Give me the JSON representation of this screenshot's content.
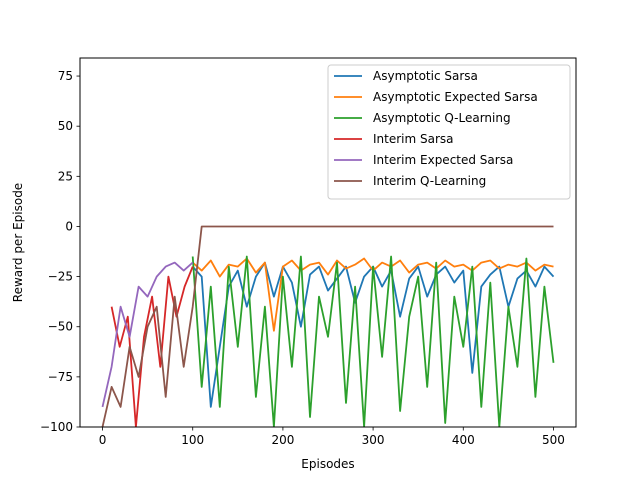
{
  "chart_data": {
    "type": "line",
    "title": "",
    "xlabel": "Episodes",
    "ylabel": "Reward per Episode",
    "xlim": [
      -25,
      525
    ],
    "ylim": [
      -100,
      84
    ],
    "xticks": [
      0,
      100,
      200,
      300,
      400,
      500
    ],
    "yticks": [
      -100,
      -75,
      -50,
      -25,
      0,
      25,
      50,
      75
    ],
    "legend_position": "top-right",
    "grid": false,
    "series": [
      {
        "name": "Asymptotic Sarsa",
        "color": "#1f77b4",
        "x_range": [
          100,
          500
        ],
        "y_sampled": [
          -20,
          -25,
          -90,
          -60,
          -30,
          -22,
          -40,
          -25,
          -18,
          -35,
          -20,
          -28,
          -50,
          -24,
          -20,
          -32,
          -26,
          -20,
          -38,
          -25,
          -20,
          -30,
          -22,
          -45,
          -26,
          -20,
          -35,
          -24,
          -20,
          -28,
          -22,
          -73,
          -30,
          -24,
          -20,
          -40,
          -26,
          -22,
          -30,
          -20,
          -25
        ]
      },
      {
        "name": "Asymptotic Expected Sarsa",
        "color": "#ff7f0e",
        "x_range": [
          100,
          500
        ],
        "y_sampled": [
          -18,
          -22,
          -17,
          -25,
          -19,
          -20,
          -16,
          -23,
          -18,
          -52,
          -20,
          -17,
          -22,
          -19,
          -18,
          -24,
          -17,
          -21,
          -19,
          -16,
          -22,
          -18,
          -20,
          -17,
          -23,
          -19,
          -18,
          -21,
          -17,
          -20,
          -19,
          -22,
          -18,
          -17,
          -21,
          -19,
          -20,
          -18,
          -22,
          -19,
          -20
        ]
      },
      {
        "name": "Asymptotic Q-Learning",
        "color": "#2ca02c",
        "x_range": [
          100,
          500
        ],
        "y_sampled": [
          -15,
          -80,
          -30,
          -90,
          -20,
          -60,
          -15,
          -85,
          -40,
          -100,
          -25,
          -70,
          -15,
          -95,
          -35,
          -55,
          -18,
          -88,
          -30,
          -100,
          -20,
          -65,
          -15,
          -92,
          -45,
          -25,
          -80,
          -18,
          -98,
          -35,
          -60,
          -20,
          -90,
          -28,
          -100,
          -40,
          -70,
          -16,
          -85,
          -30,
          -68
        ]
      },
      {
        "name": "Interim Sarsa",
        "color": "#d62728",
        "x_range": [
          10,
          100
        ],
        "y_sampled": [
          -40,
          -60,
          -45,
          -100,
          -55,
          -35,
          -70,
          -25,
          -45,
          -30,
          -20
        ]
      },
      {
        "name": "Interim Expected Sarsa",
        "color": "#9467bd",
        "x_range": [
          0,
          100
        ],
        "y_sampled": [
          -90,
          -70,
          -40,
          -55,
          -30,
          -35,
          -25,
          -20,
          -18,
          -22,
          -18
        ]
      },
      {
        "name": "Interim Q-Learning",
        "color": "#8c564b",
        "x_range": [
          0,
          500
        ],
        "y_sampled": [
          -100,
          -80,
          -90,
          -60,
          -75,
          -50,
          -40,
          -85,
          -35,
          -70,
          -40,
          0,
          0,
          0,
          0,
          0,
          0,
          0,
          0,
          0,
          0,
          0,
          0,
          0,
          0,
          0,
          0,
          0,
          0,
          0,
          0,
          0,
          0,
          0,
          0,
          0,
          0,
          0,
          0,
          0,
          0,
          0,
          0,
          0,
          0,
          0,
          0,
          0,
          0,
          0,
          0
        ]
      }
    ]
  }
}
